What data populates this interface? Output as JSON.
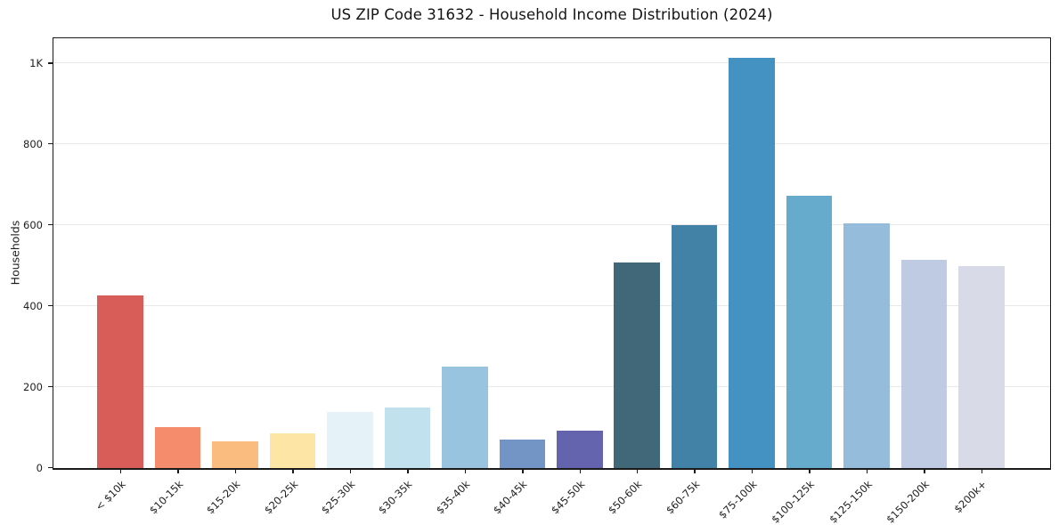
{
  "chart_data": {
    "type": "bar",
    "title": "US ZIP Code 31632 - Household Income Distribution (2024)",
    "xlabel": "",
    "ylabel": "Households",
    "ylim": [
      0,
      1060
    ],
    "grid": "horizontal-only",
    "legend": "none",
    "background": "#ffffff",
    "categories": [
      "< $10k",
      "$10-15k",
      "$15-20k",
      "$20-25k",
      "$25-30k",
      "$30-35k",
      "$35-40k",
      "$40-45k",
      "$45-50k",
      "$50-60k",
      "$60-75k",
      "$75-100k",
      "$100-125k",
      "$125-150k",
      "$150-200k",
      "$200k+"
    ],
    "values": [
      425,
      100,
      65,
      85,
      137,
      148,
      249,
      69,
      91,
      508,
      600,
      1012,
      671,
      603,
      514,
      499
    ],
    "bar_colors": [
      "#d6544f",
      "#f48664",
      "#fbb878",
      "#fde4a0",
      "#e4f1f7",
      "#bfdfed",
      "#94c1de",
      "#6a8fc3",
      "#5c5baa",
      "#366072",
      "#387ba1",
      "#3a8cbf",
      "#5fa6c9",
      "#90b8da",
      "#bac8e0",
      "#d6d9e6"
    ],
    "yticks": [
      {
        "value": 0,
        "label": "0"
      },
      {
        "value": 200,
        "label": "200"
      },
      {
        "value": 400,
        "label": "400"
      },
      {
        "value": 600,
        "label": "600"
      },
      {
        "value": 800,
        "label": "800"
      },
      {
        "value": 1000,
        "label": "1K"
      }
    ],
    "gridline_values": [
      200,
      400,
      600,
      800,
      1000
    ],
    "colors": {
      "grid": "#e8e8e8",
      "spine": "#1a1a1a",
      "tick_label": "#1e1e1e",
      "title": "#141414"
    }
  }
}
